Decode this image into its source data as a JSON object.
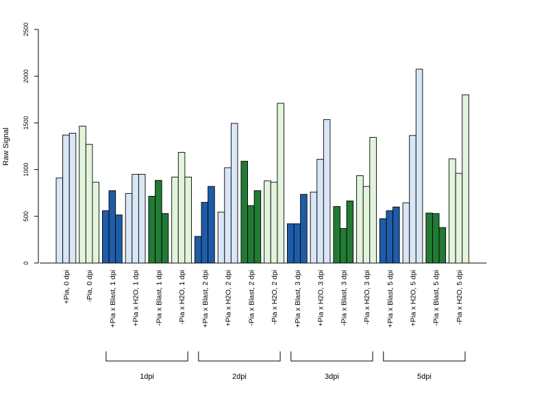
{
  "chart_data": {
    "type": "bar",
    "ylabel": "Raw Signal",
    "ylim": [
      0,
      2500
    ],
    "yticks": [
      0,
      500,
      1000,
      1500,
      2000,
      2500
    ],
    "groups": [
      {
        "label": "+Pia, 0 dpi",
        "values": [
          910,
          1370,
          1390
        ],
        "color": "#d8e6f5"
      },
      {
        "label": "-Pia, 0 dpi",
        "values": [
          1465,
          1270,
          865
        ],
        "color": "#e2f4dc"
      },
      {
        "label": "+Pia x Blast, 1 dpi",
        "values": [
          560,
          775,
          515
        ],
        "color": "#1f5ca8"
      },
      {
        "label": "+Pia x H2O, 1 dpi",
        "values": [
          745,
          950,
          950
        ],
        "color": "#d8e6f5"
      },
      {
        "label": "-Pia x Blast, 1 dpi",
        "values": [
          715,
          885,
          530
        ],
        "color": "#227a34"
      },
      {
        "label": "-Pia x H2O, 1 dpi",
        "values": [
          920,
          1185,
          920
        ],
        "color": "#e2f4dc"
      },
      {
        "label": "+Pia x Blast, 2 dpi",
        "values": [
          285,
          650,
          820
        ],
        "color": "#1f5ca8"
      },
      {
        "label": "+Pia x H2O, 2 dpi",
        "values": [
          545,
          1020,
          1495
        ],
        "color": "#d8e6f5"
      },
      {
        "label": "-Pia x Blast, 2 dpi",
        "values": [
          1090,
          615,
          775
        ],
        "color": "#227a34"
      },
      {
        "label": "-Pia x H2O, 2 dpi",
        "values": [
          880,
          865,
          1710
        ],
        "color": "#e2f4dc"
      },
      {
        "label": "+Pia x Blast, 3 dpi",
        "values": [
          420,
          420,
          735
        ],
        "color": "#1f5ca8"
      },
      {
        "label": "+Pia x H2O, 3 dpi",
        "values": [
          760,
          1110,
          1535
        ],
        "color": "#d8e6f5"
      },
      {
        "label": "-Pia x Blast, 3 dpi",
        "values": [
          605,
          370,
          665
        ],
        "color": "#227a34"
      },
      {
        "label": "-Pia x H2O, 3 dpi",
        "values": [
          935,
          820,
          1345
        ],
        "color": "#e2f4dc"
      },
      {
        "label": "+Pia x Blast, 5 dpi",
        "values": [
          475,
          560,
          600
        ],
        "color": "#1f5ca8"
      },
      {
        "label": "+Pia x H2O, 5 dpi",
        "values": [
          645,
          1365,
          2075
        ],
        "color": "#d8e6f5"
      },
      {
        "label": "-Pia x Blast, 5 dpi",
        "values": [
          535,
          530,
          380
        ],
        "color": "#227a34"
      },
      {
        "label": "-Pia x H2O, 5 dpi",
        "values": [
          1115,
          960,
          1800
        ],
        "color": "#e2f4dc"
      }
    ],
    "brackets": [
      {
        "label": "1dpi",
        "from_group": 2,
        "to_group": 5
      },
      {
        "label": "2dpi",
        "from_group": 6,
        "to_group": 9
      },
      {
        "label": "3dpi",
        "from_group": 10,
        "to_group": 13
      },
      {
        "label": "5dpi",
        "from_group": 14,
        "to_group": 17
      }
    ]
  }
}
